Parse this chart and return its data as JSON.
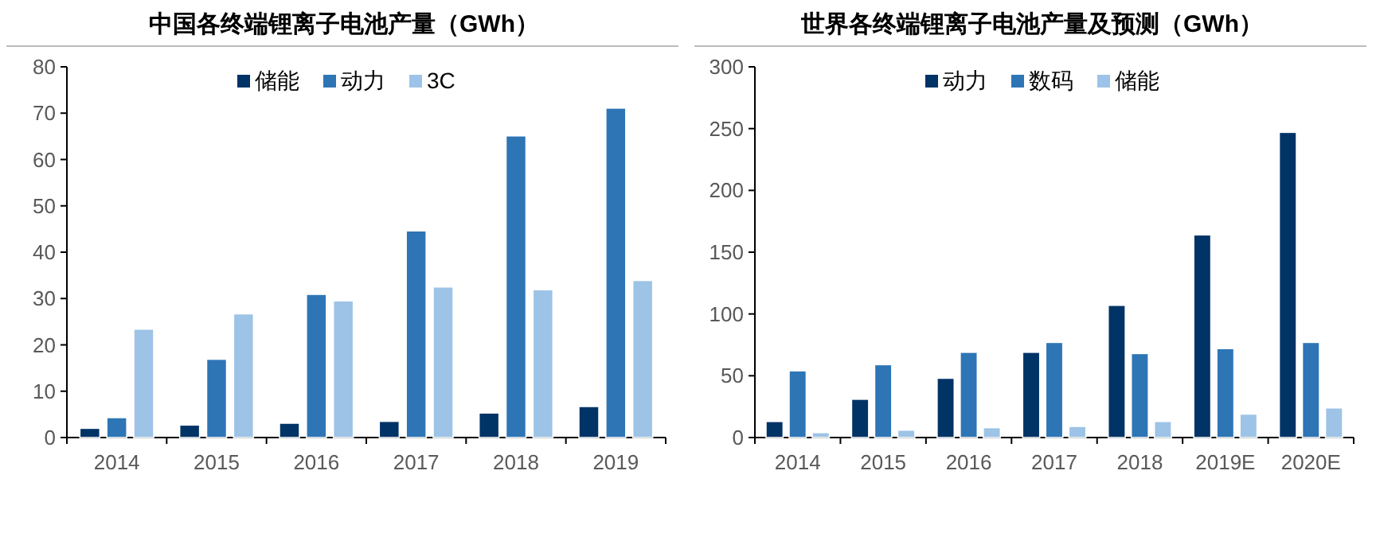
{
  "chart_data": [
    {
      "type": "bar",
      "title": "中国各终端锂离子电池产量（GWh）",
      "categories": [
        "2014",
        "2015",
        "2016",
        "2017",
        "2018",
        "2019"
      ],
      "series": [
        {
          "name": "储能",
          "color": "#003366",
          "values": [
            2.0,
            2.7,
            3.1,
            3.5,
            5.3,
            6.7
          ]
        },
        {
          "name": "动力",
          "color": "#2e75b6",
          "values": [
            4.3,
            16.9,
            30.9,
            44.6,
            65.1,
            71.1
          ]
        },
        {
          "name": "3C",
          "color": "#9dc3e6",
          "values": [
            23.4,
            26.7,
            29.5,
            32.5,
            31.9,
            33.9
          ]
        }
      ],
      "ylim": [
        0,
        80
      ],
      "yticks": [
        0,
        10,
        20,
        30,
        40,
        50,
        60,
        70,
        80
      ],
      "grid": false,
      "legend": "top"
    },
    {
      "type": "bar",
      "title": "世界各终端锂离子电池产量及预测（GWh）",
      "categories": [
        "2014",
        "2015",
        "2016",
        "2017",
        "2018",
        "2019E",
        "2020E"
      ],
      "series": [
        {
          "name": "动力",
          "color": "#003366",
          "values": [
            13,
            31,
            48,
            69,
            107,
            164,
            247
          ]
        },
        {
          "name": "数码",
          "color": "#2e75b6",
          "values": [
            54,
            59,
            69,
            77,
            68,
            72,
            77
          ]
        },
        {
          "name": "储能",
          "color": "#9dc3e6",
          "values": [
            4,
            6,
            8,
            9,
            13,
            19,
            24
          ]
        }
      ],
      "ylim": [
        0,
        300
      ],
      "yticks": [
        0,
        50,
        100,
        150,
        200,
        250,
        300
      ],
      "grid": false,
      "legend": "top"
    }
  ]
}
